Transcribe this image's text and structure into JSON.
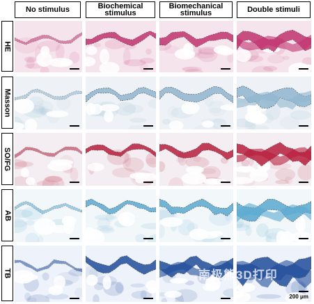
{
  "columns": [
    "No stimulus",
    "Biochemical stimulus",
    "Biomechanical stimulus",
    "Double stimuli"
  ],
  "rows": [
    "HE",
    "Masson",
    "SO/FG",
    "AB",
    "TB"
  ],
  "scale_label": "200 μm",
  "watermark": "南极熊3D打印",
  "stain_colors": {
    "HE": "#c2336f",
    "Masson": "#8fb6cf",
    "SO/FG": "#b81d3c",
    "AB": "#5aa9d0",
    "TB": "#1f4d9a"
  }
}
